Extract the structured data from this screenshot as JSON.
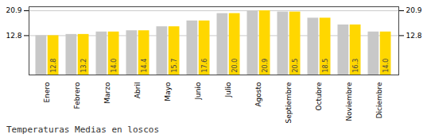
{
  "chart_data": {
    "type": "bar",
    "title": "Temperaturas Medias en loscos",
    "categories": [
      "Enero",
      "Febrero",
      "Marzo",
      "Abril",
      "Mayo",
      "Junio",
      "Julio",
      "Agosto",
      "Septiembre",
      "Octubre",
      "Noviembre",
      "Diciembre"
    ],
    "series": [
      {
        "color": "#C8C8C8",
        "values": [
          12.8,
          13.2,
          14.0,
          14.4,
          15.7,
          17.6,
          20.0,
          20.9,
          20.5,
          18.5,
          16.3,
          14.0
        ]
      },
      {
        "color": "#FFD700",
        "values": [
          12.8,
          13.2,
          14.0,
          14.4,
          15.7,
          17.6,
          20.0,
          20.9,
          20.5,
          18.5,
          16.3,
          14.0
        ],
        "data_labels": true,
        "value_labels": [
          "12.8",
          "13.2",
          "14.0",
          "14.4",
          "15.7",
          "17.6",
          "20.0",
          "20.9",
          "20.5",
          "18.5",
          "16.3",
          "14.0"
        ]
      }
    ],
    "ylim": [
      0.0,
      22.2
    ],
    "yticks": [
      12.8,
      20.9
    ],
    "y2lim": [
      0.0,
      22.2
    ],
    "y2ticks": [
      12.8,
      20.9
    ],
    "grid": true
  }
}
